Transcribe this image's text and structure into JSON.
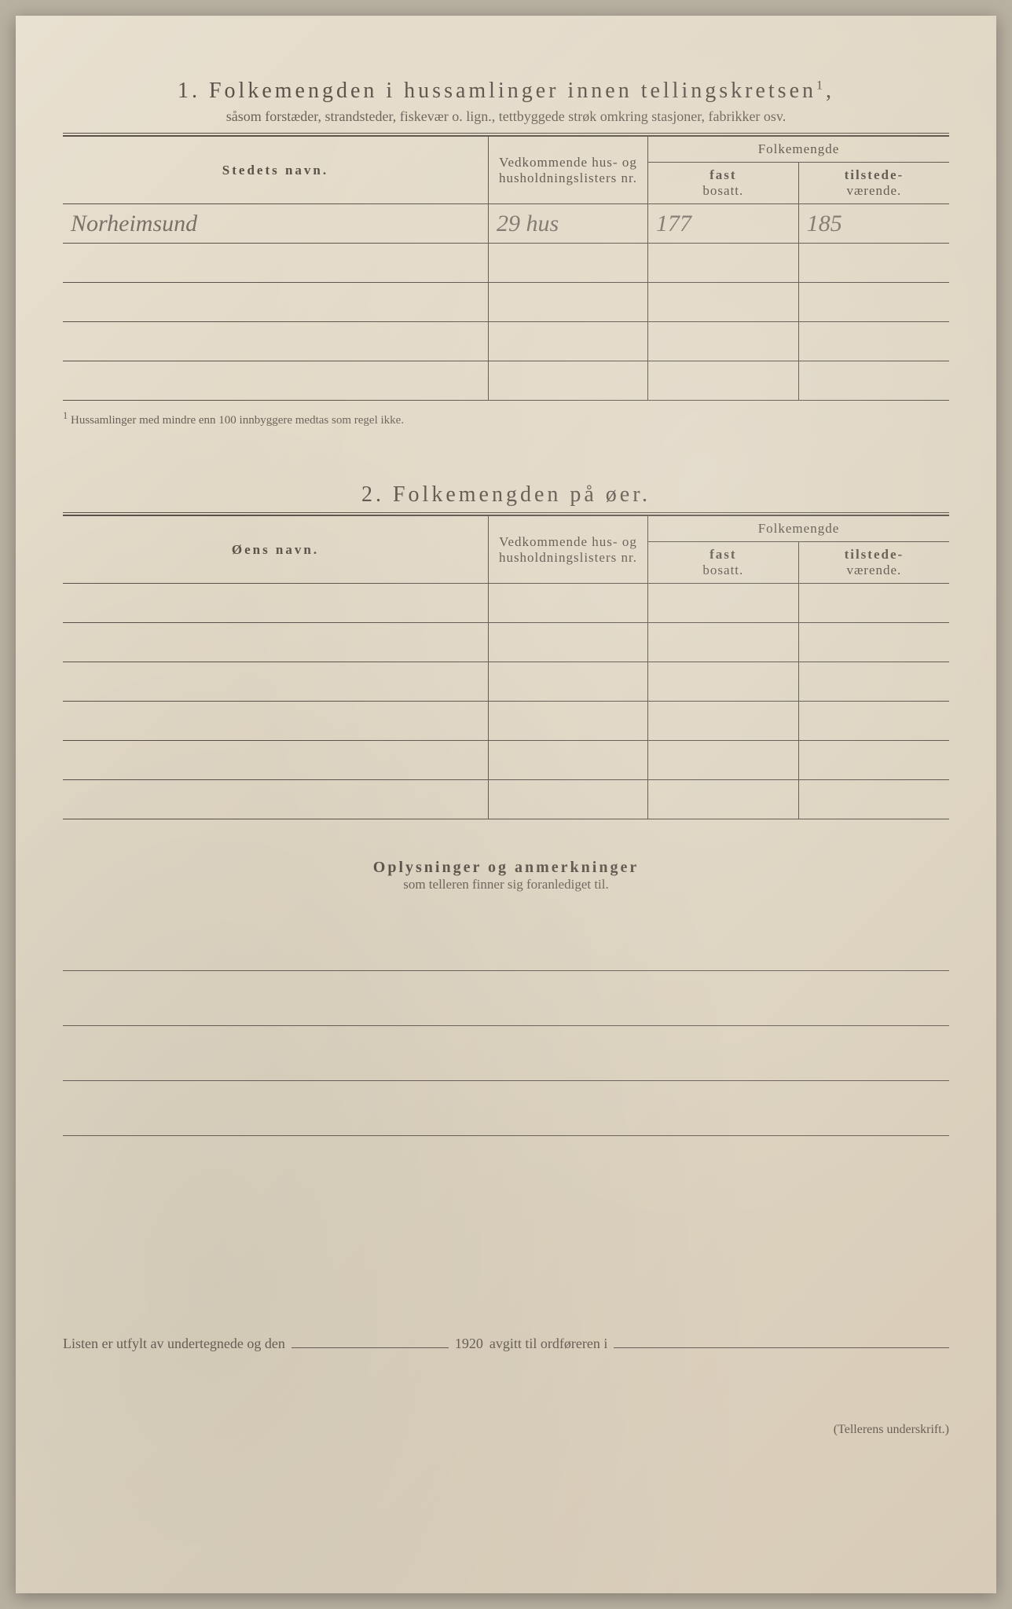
{
  "section1": {
    "number": "1.",
    "title": "Folkemengden i hussamlinger innen tellingskretsen",
    "title_sup": "1",
    "subtitle": "såsom forstæder, strandsteder, fiskevær o. lign., tettbyggede strøk omkring stasjoner, fabrikker osv.",
    "columns": {
      "name": "Stedets navn.",
      "lists": "Vedkommende hus- og husholdningslisters nr.",
      "folk_group": "Folkemengde",
      "fast": "fast",
      "fast_sub": "bosatt.",
      "til": "tilstede-",
      "til_sub": "værende."
    },
    "rows": [
      {
        "name": "Norheimsund",
        "lists": "29 hus",
        "fast": "177",
        "til": "185"
      },
      {
        "name": "",
        "lists": "",
        "fast": "",
        "til": ""
      },
      {
        "name": "",
        "lists": "",
        "fast": "",
        "til": ""
      },
      {
        "name": "",
        "lists": "",
        "fast": "",
        "til": ""
      },
      {
        "name": "",
        "lists": "",
        "fast": "",
        "til": ""
      }
    ],
    "footnote_marker": "1",
    "footnote": "Hussamlinger med mindre enn 100 innbyggere medtas som regel ikke."
  },
  "section2": {
    "number": "2.",
    "title": "Folkemengden på øer.",
    "columns": {
      "name": "Øens navn.",
      "lists": "Vedkommende hus- og husholdningslisters nr.",
      "folk_group": "Folkemengde",
      "fast": "fast",
      "fast_sub": "bosatt.",
      "til": "tilstede-",
      "til_sub": "værende."
    },
    "rows": [
      {
        "name": "",
        "lists": "",
        "fast": "",
        "til": ""
      },
      {
        "name": "",
        "lists": "",
        "fast": "",
        "til": ""
      },
      {
        "name": "",
        "lists": "",
        "fast": "",
        "til": ""
      },
      {
        "name": "",
        "lists": "",
        "fast": "",
        "til": ""
      },
      {
        "name": "",
        "lists": "",
        "fast": "",
        "til": ""
      },
      {
        "name": "",
        "lists": "",
        "fast": "",
        "til": ""
      }
    ]
  },
  "oplysninger": {
    "title": "Oplysninger og anmerkninger",
    "subtitle": "som telleren finner sig foranlediget til."
  },
  "signature": {
    "prefix": "Listen er utfylt av undertegnede og den",
    "year": "1920",
    "mid": "avgitt til ordføreren i",
    "label": "(Tellerens underskrift.)"
  }
}
